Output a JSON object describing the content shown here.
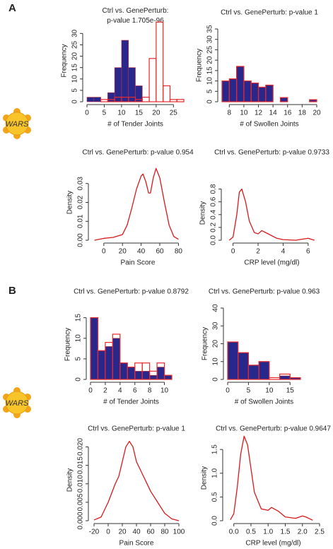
{
  "panels": [
    "A",
    "B"
  ],
  "icon_labels": [
    "WARS",
    "WARS"
  ],
  "chart_data": [
    {
      "type": "histogram",
      "title": "Ctrl vs. GenePerturb:\np-value 1.705e-96",
      "xlabel": "# of Tender Joints",
      "ylabel": "Frequency",
      "bins": [
        0,
        2,
        4,
        6,
        8,
        10,
        12,
        14,
        16,
        18,
        20,
        22,
        24,
        26,
        28
      ],
      "series": [
        {
          "color": "#28288c",
          "fill": true,
          "values": [
            2,
            2,
            0,
            4,
            15,
            27,
            15,
            7,
            0,
            0,
            0,
            0,
            0,
            0
          ]
        },
        {
          "color": "#e8282a",
          "fill": false,
          "values": [
            0,
            0,
            1,
            1,
            2,
            2,
            2,
            1,
            2,
            19,
            35,
            7,
            1,
            1
          ]
        }
      ],
      "xlim": [
        0,
        28
      ],
      "ylim": [
        0,
        36
      ],
      "xticks": [
        0,
        5,
        10,
        15,
        20,
        25
      ],
      "yticks": [
        0,
        5,
        10,
        15,
        20,
        25,
        30
      ]
    },
    {
      "type": "histogram",
      "title": "Ctrl vs. GenePerturb: p-value 1",
      "xlabel": "# of Swollen Joints",
      "ylabel": "Frequency",
      "bins": [
        7,
        8,
        9,
        10,
        11,
        12,
        13,
        14,
        15,
        16,
        17,
        18,
        19,
        20
      ],
      "series": [
        {
          "color": "#28288c",
          "fill": true,
          "values": [
            10,
            11,
            17,
            10,
            9,
            7,
            8,
            0,
            2,
            0,
            0,
            0,
            1
          ]
        },
        {
          "color": "#e8282a",
          "fill": false,
          "values": [
            10,
            11,
            17,
            10,
            9,
            7,
            8,
            0,
            2,
            0,
            0,
            0,
            1
          ]
        }
      ],
      "xlim": [
        7,
        20
      ],
      "ylim": [
        0,
        35
      ],
      "xticks": [
        8,
        10,
        12,
        14,
        16,
        18,
        20
      ],
      "yticks": [
        0,
        5,
        10,
        15,
        20,
        25,
        30,
        35
      ]
    },
    {
      "type": "line",
      "title": "Ctrl vs. GenePerturb: p-value 0.954",
      "xlabel": "Pain Score",
      "ylabel": "Density",
      "x": [
        -10,
        0,
        10,
        20,
        25,
        30,
        35,
        40,
        42,
        45,
        48,
        50,
        53,
        56,
        60,
        65,
        70,
        75,
        80
      ],
      "series": [
        {
          "color": "#d7191c",
          "values": [
            0,
            0.001,
            0.0015,
            0.003,
            0.008,
            0.017,
            0.027,
            0.034,
            0.035,
            0.031,
            0.025,
            0.025,
            0.033,
            0.038,
            0.033,
            0.02,
            0.008,
            0.002,
            0.0005
          ]
        }
      ],
      "xlim": [
        -12,
        85
      ],
      "ylim": [
        0,
        0.04
      ],
      "xticks": [
        0,
        20,
        40,
        60,
        80
      ],
      "yticks": [
        {
          "value": 0,
          "label": "0.00"
        },
        {
          "value": 0.01,
          "label": "0.01"
        },
        {
          "value": 0.02,
          "label": "0.02"
        },
        {
          "value": 0.03,
          "label": "0.03"
        }
      ]
    },
    {
      "type": "line",
      "title": "Ctrl vs. GenePerturb: p-value 0.9733",
      "xlabel": "CRP level (mg/dl)",
      "ylabel": "Density",
      "x": [
        -0.3,
        0,
        0.3,
        0.5,
        0.7,
        1.0,
        1.3,
        1.7,
        2.0,
        2.3,
        2.6,
        3.0,
        3.5,
        4,
        5,
        6,
        6.5
      ],
      "series": [
        {
          "color": "#d7191c",
          "values": [
            0,
            0.05,
            0.4,
            0.75,
            0.8,
            0.6,
            0.3,
            0.12,
            0.1,
            0.15,
            0.12,
            0.08,
            0.03,
            0.01,
            0,
            0.03,
            0
          ]
        }
      ],
      "xlim": [
        -0.6,
        6.8
      ],
      "ylim": [
        0,
        0.85
      ],
      "xticks": [
        0,
        2,
        4,
        6
      ],
      "yticks": [
        {
          "value": 0,
          "label": "0.0"
        },
        {
          "value": 0.2,
          "label": "0.2"
        },
        {
          "value": 0.4,
          "label": "0.4"
        },
        {
          "value": 0.6,
          "label": "0.6"
        },
        {
          "value": 0.8,
          "label": "0.8"
        }
      ]
    },
    {
      "type": "histogram",
      "title": "Ctrl vs. GenePerturb: p-value 0.8792",
      "xlabel": "# of Tender Joints",
      "ylabel": "Frequency",
      "bins": [
        0,
        1,
        2,
        3,
        4,
        5,
        6,
        7,
        8,
        9,
        10,
        11
      ],
      "series": [
        {
          "color": "#28288c",
          "fill": true,
          "values": [
            15,
            7,
            8,
            10,
            4,
            3,
            2,
            2,
            1,
            3,
            1
          ]
        },
        {
          "color": "#e8282a",
          "fill": false,
          "values": [
            15,
            7,
            9,
            11,
            4,
            3,
            4,
            4,
            2,
            4,
            1
          ]
        }
      ],
      "xlim": [
        0,
        11
      ],
      "ylim": [
        0,
        17
      ],
      "xticks": [
        0,
        2,
        4,
        6,
        8,
        10
      ],
      "yticks": [
        0,
        5,
        10,
        15
      ]
    },
    {
      "type": "histogram",
      "title": "Ctrl vs. GenePerturb: p-value 0.963",
      "xlabel": "# of Swollen Joints",
      "ylabel": "Frequency",
      "bins": [
        0,
        2.5,
        5,
        7.5,
        10,
        12.5,
        15,
        17.5
      ],
      "series": [
        {
          "color": "#28288c",
          "fill": true,
          "values": [
            21,
            15,
            8,
            10,
            0,
            2,
            1
          ]
        },
        {
          "color": "#e8282a",
          "fill": false,
          "values": [
            21,
            15,
            8,
            10,
            1,
            3,
            1
          ]
        }
      ],
      "xlim": [
        0,
        17.5
      ],
      "ylim": [
        0,
        40
      ],
      "xticks": [
        0,
        5,
        10,
        15
      ],
      "yticks": [
        0,
        10,
        20,
        30,
        40
      ]
    },
    {
      "type": "line",
      "title": "Ctrl vs. GenePerturb: p-value 1",
      "xlabel": "Pain Score",
      "ylabel": "Density",
      "x": [
        -20,
        -10,
        0,
        10,
        15,
        20,
        25,
        30,
        35,
        40,
        50,
        60,
        70,
        80,
        90,
        100
      ],
      "series": [
        {
          "color": "#d7191c",
          "values": [
            0.0002,
            0.001,
            0.005,
            0.01,
            0.012,
            0.016,
            0.02,
            0.0215,
            0.02,
            0.016,
            0.012,
            0.008,
            0.005,
            0.002,
            0.0005,
            0
          ]
        }
      ],
      "xlim": [
        -22,
        102
      ],
      "ylim": [
        0,
        0.022
      ],
      "xticks": [
        -20,
        0,
        20,
        40,
        60,
        80,
        100
      ],
      "yticks": [
        {
          "value": 0,
          "label": "0.000"
        },
        {
          "value": 0.005,
          "label": "0.005"
        },
        {
          "value": 0.01,
          "label": "0.010"
        },
        {
          "value": 0.015,
          "label": "0.015"
        },
        {
          "value": 0.02,
          "label": "0.020"
        }
      ]
    },
    {
      "type": "line",
      "title": "Ctrl vs. GenePerturb: p-value 0.9647",
      "xlabel": "CRP level (mg/dl)",
      "ylabel": "Density",
      "x": [
        -0.1,
        0,
        0.1,
        0.2,
        0.3,
        0.4,
        0.5,
        0.6,
        0.8,
        1.0,
        1.1,
        1.3,
        1.5,
        1.8,
        2.0,
        2.1,
        2.3
      ],
      "series": [
        {
          "color": "#d7191c",
          "values": [
            0.02,
            0.15,
            0.7,
            1.4,
            1.78,
            1.6,
            1.1,
            0.6,
            0.25,
            0.22,
            0.28,
            0.2,
            0.08,
            0.05,
            0.1,
            0.08,
            0.01
          ]
        }
      ],
      "xlim": [
        -0.2,
        2.5
      ],
      "ylim": [
        0,
        1.8
      ],
      "xticks": [
        {
          "value": 0,
          "label": "0.0"
        },
        {
          "value": 0.5,
          "label": "0.5"
        },
        {
          "value": 1,
          "label": "1.0"
        },
        {
          "value": 1.5,
          "label": "1.5"
        },
        {
          "value": 2,
          "label": "2.0"
        },
        {
          "value": 2.5,
          "label": "2.5"
        }
      ],
      "yticks": [
        {
          "value": 0,
          "label": "0.0"
        },
        {
          "value": 0.5,
          "label": "0.5"
        },
        {
          "value": 1,
          "label": "1.0"
        },
        {
          "value": 1.5,
          "label": "1.5"
        }
      ]
    }
  ]
}
